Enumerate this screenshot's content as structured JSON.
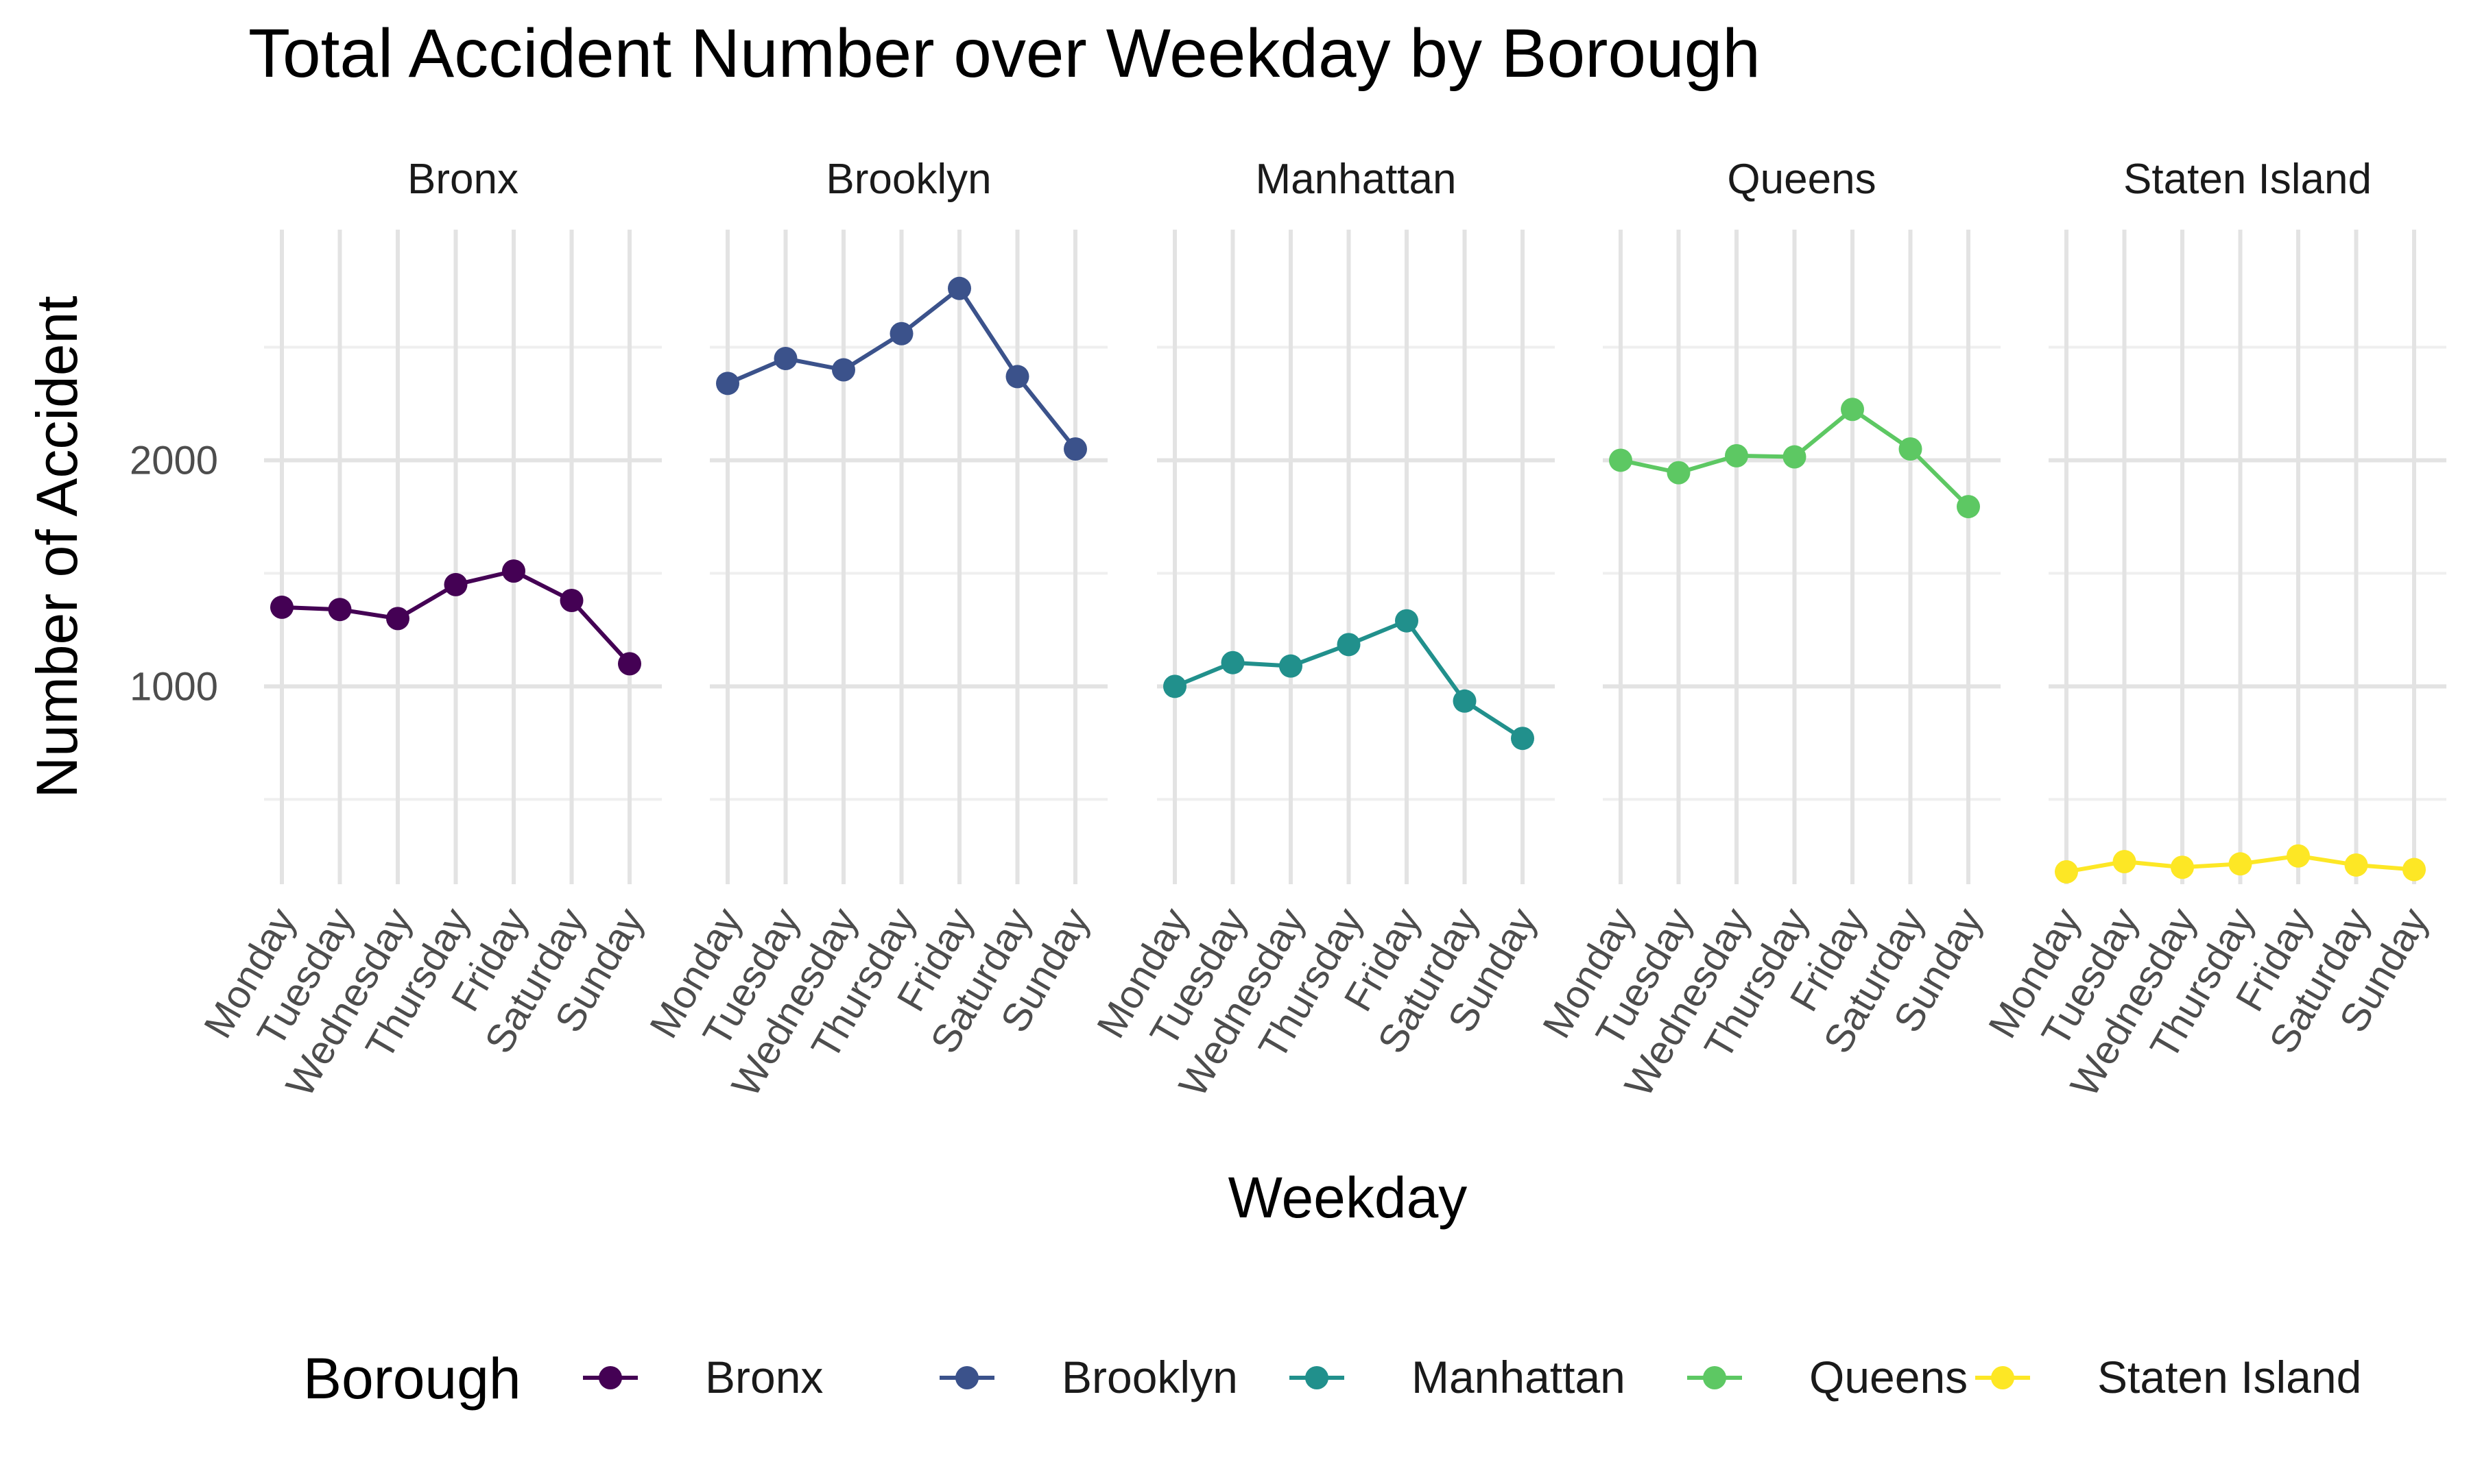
{
  "chart_data": {
    "type": "line",
    "title": "Total Accident Number over Weekday by Borough",
    "xlabel": "Weekday",
    "ylabel": "Number of Accident",
    "categories": [
      "Monday",
      "Tuesday",
      "Wednesday",
      "Thursday",
      "Friday",
      "Saturday",
      "Sunday"
    ],
    "yticks": [
      1000,
      2000
    ],
    "ylim": [
      125,
      3020
    ],
    "grid": true,
    "legend": {
      "title": "Borough",
      "position": "bottom"
    },
    "series": [
      {
        "name": "Bronx",
        "color": "#440154",
        "values": [
          1350,
          1340,
          1300,
          1450,
          1510,
          1380,
          1100
        ]
      },
      {
        "name": "Brooklyn",
        "color": "#3B528B",
        "values": [
          2340,
          2450,
          2400,
          2560,
          2760,
          2370,
          2050
        ]
      },
      {
        "name": "Manhattan",
        "color": "#21908C",
        "values": [
          1000,
          1105,
          1090,
          1185,
          1290,
          935,
          770
        ]
      },
      {
        "name": "Queens",
        "color": "#5DC863",
        "values": [
          2000,
          1945,
          2020,
          2015,
          2225,
          2050,
          1795
        ]
      },
      {
        "name": "Staten Island",
        "color": "#FDE725",
        "values": [
          180,
          225,
          200,
          215,
          250,
          210,
          190
        ]
      }
    ]
  }
}
